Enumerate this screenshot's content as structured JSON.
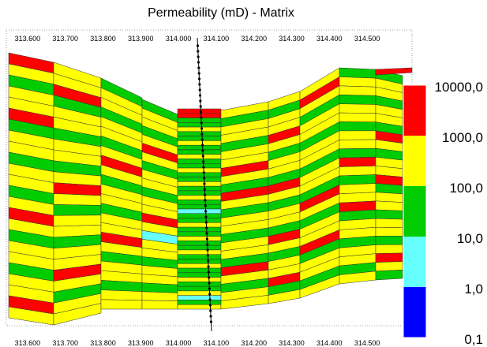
{
  "chart_data": {
    "type": "heatmap",
    "title": "Permeability (mD) - Matrix",
    "x_ticks": [
      "313.600",
      "313.700",
      "313.800",
      "313.900",
      "314.000",
      "314.100",
      "314.200",
      "314.300",
      "314.400",
      "314.500"
    ],
    "xlim": [
      313.55,
      314.55
    ],
    "colorbar": {
      "labels": [
        "10000,0",
        "1000,0",
        "100,0",
        "10,0",
        "1,0",
        "0,1"
      ],
      "bands": [
        {
          "from": 1000,
          "to": 10000,
          "color": "#ff0000"
        },
        {
          "from": 100,
          "to": 1000,
          "color": "#ffff00"
        },
        {
          "from": 10,
          "to": 100,
          "color": "#00cc00"
        },
        {
          "from": 1,
          "to": 10,
          "color": "#66ffff"
        },
        {
          "from": 0.1,
          "to": 1,
          "color": "#0000ff"
        }
      ],
      "scale": "log"
    },
    "grid": false
  },
  "colors": {
    "red": "#ff0000",
    "yellow": "#ffff00",
    "green": "#00cc00",
    "cyan": "#66ffff",
    "blue": "#0000ff"
  }
}
